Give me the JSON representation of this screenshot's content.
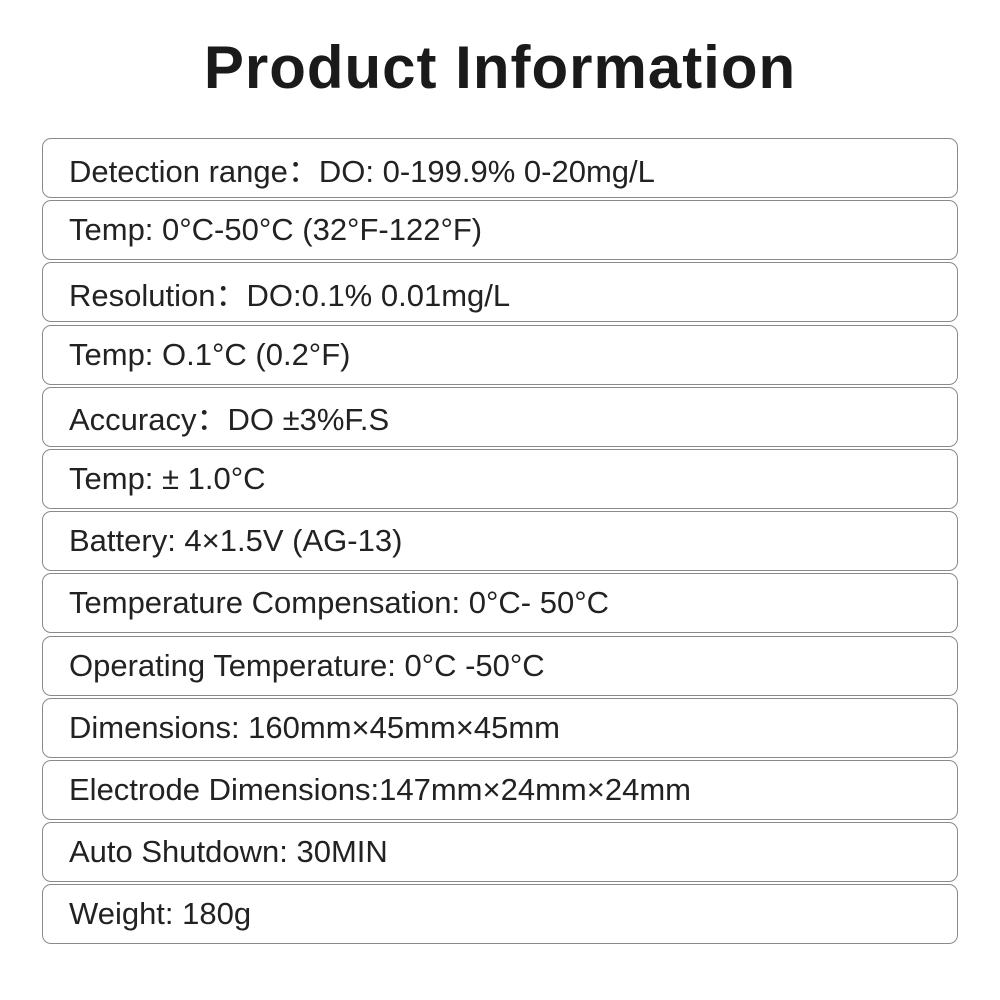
{
  "title": "Product Information",
  "specs": [
    "Detection range：DO: 0-199.9% 0-20mg/L",
    "Temp: 0°C-50°C (32°F-122°F)",
    "Resolution：DO:0.1% 0.01mg/L",
    "Temp: O.1°C (0.2°F)",
    "Accuracy：DO ±3%F.S",
    "Temp: ± 1.0°C",
    "Battery: 4×1.5V (AG-13)",
    "Temperature Compensation: 0°C- 50°C",
    "Operating Temperature: 0°C -50°C",
    "Dimensions: 160mm×45mm×45mm",
    "Electrode Dimensions:147mm×24mm×24mm",
    "Auto Shutdown: 30MIN",
    "Weight: 180g"
  ]
}
